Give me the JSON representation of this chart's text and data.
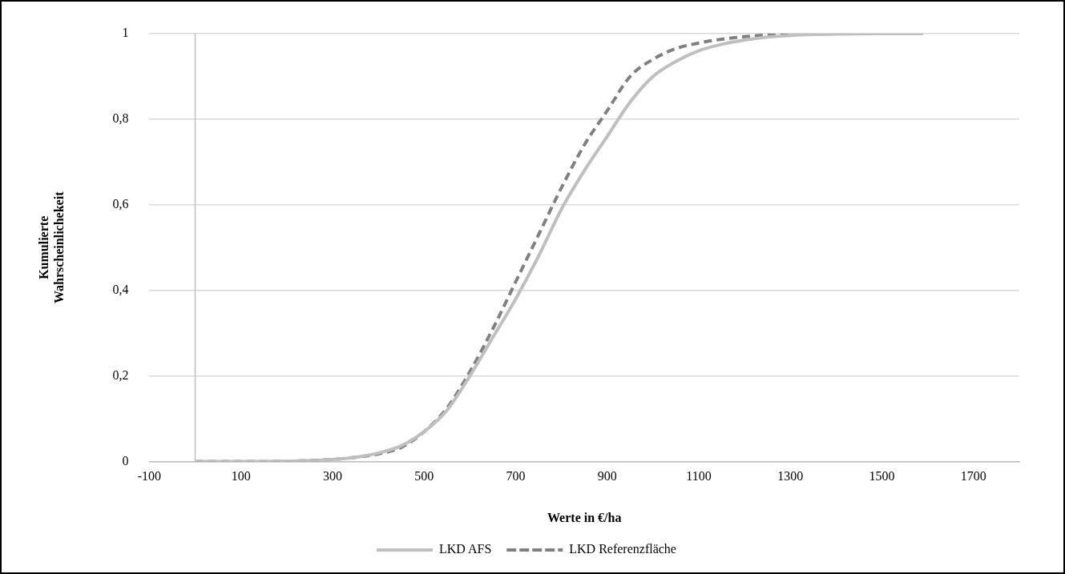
{
  "chart_data": {
    "type": "line",
    "xlabel": "Werte in €/ha",
    "ylabel": "Kumulierte Wahrscheinlichekeit",
    "x": [
      0,
      100,
      200,
      300,
      350,
      400,
      450,
      500,
      550,
      600,
      650,
      700,
      750,
      800,
      850,
      900,
      950,
      1000,
      1050,
      1100,
      1150,
      1200,
      1250,
      1300,
      1400,
      1500,
      1590
    ],
    "series": [
      {
        "name": "LKD AFS",
        "color": "#bfbfbf",
        "line_style": "solid",
        "values": [
          0,
          0,
          0.001,
          0.005,
          0.01,
          0.02,
          0.037,
          0.07,
          0.12,
          0.2,
          0.29,
          0.38,
          0.48,
          0.59,
          0.68,
          0.76,
          0.84,
          0.9,
          0.935,
          0.96,
          0.975,
          0.985,
          0.992,
          0.996,
          0.999,
          1,
          1
        ]
      },
      {
        "name": "LKD Referenzfläche",
        "color": "#808080",
        "line_style": "dashed",
        "values": [
          0,
          0,
          0.001,
          0.005,
          0.01,
          0.018,
          0.033,
          0.07,
          0.125,
          0.21,
          0.31,
          0.42,
          0.53,
          0.64,
          0.74,
          0.82,
          0.9,
          0.94,
          0.965,
          0.978,
          0.987,
          0.993,
          0.997,
          1,
          1,
          1,
          1
        ]
      }
    ],
    "xlim": [
      -100,
      1800
    ],
    "xticks": [
      -100,
      100,
      300,
      500,
      700,
      900,
      1100,
      1300,
      1500,
      1700
    ],
    "ylim": [
      0,
      1
    ],
    "yticks": [
      0,
      {
        "value": 0.2,
        "label": "0,2"
      },
      {
        "value": 0.4,
        "label": "0,4"
      },
      {
        "value": 0.6,
        "label": "0,6"
      },
      {
        "value": 0.8,
        "label": "0,8"
      },
      1
    ],
    "grid": "y",
    "legend": "bottom",
    "marker": "none"
  }
}
